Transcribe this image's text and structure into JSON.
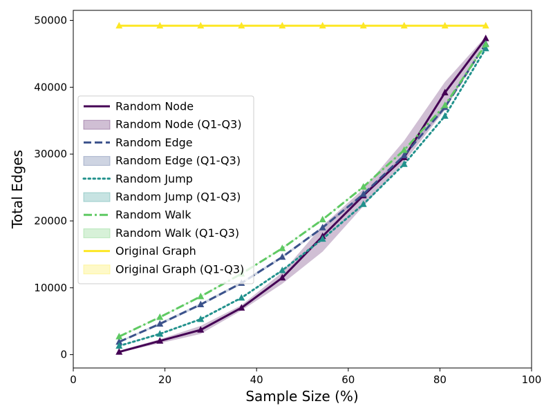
{
  "chart_data": {
    "type": "line",
    "title": "",
    "xlabel": "Sample Size (%)",
    "ylabel": "Total Edges",
    "xlim": [
      0,
      100
    ],
    "ylim": [
      -2000,
      51500
    ],
    "xticks": [
      0,
      20,
      40,
      60,
      80,
      100
    ],
    "yticks": [
      0,
      10000,
      20000,
      30000,
      40000,
      50000
    ],
    "grid": false,
    "legend_position": "center-left",
    "x": [
      10,
      18.9,
      27.8,
      36.7,
      45.6,
      54.4,
      63.3,
      72.2,
      81.1,
      90
    ],
    "series": [
      {
        "name": "Random Node",
        "band_name": "Random Node (Q1-Q3)",
        "color": "#440154",
        "style": "solid",
        "values": [
          400,
          2050,
          3700,
          7000,
          11500,
          17700,
          23800,
          29500,
          39200,
          47300
        ],
        "q1": [
          300,
          1700,
          3100,
          6600,
          10600,
          15400,
          22200,
          28800,
          36600,
          46900
        ],
        "q3": [
          600,
          2300,
          4300,
          7400,
          12300,
          19300,
          24800,
          32000,
          40800,
          47600
        ]
      },
      {
        "name": "Random Edge",
        "band_name": "Random Edge (Q1-Q3)",
        "color": "#3b528b",
        "style": "dashed",
        "values": [
          1900,
          4600,
          7500,
          10700,
          14600,
          19000,
          24000,
          29800,
          37000,
          46500
        ],
        "q1": [
          1800,
          4400,
          7300,
          10500,
          14400,
          18800,
          23800,
          29600,
          36800,
          46300
        ],
        "q3": [
          2000,
          4800,
          7700,
          10900,
          14800,
          19200,
          24200,
          30000,
          37200,
          46700
        ]
      },
      {
        "name": "Random Jump",
        "band_name": "Random Jump (Q1-Q3)",
        "color": "#21918c",
        "style": "dotted",
        "values": [
          1300,
          3100,
          5300,
          8500,
          12600,
          17300,
          22500,
          28500,
          35700,
          45800
        ],
        "q1": [
          1200,
          3000,
          5200,
          8400,
          12500,
          17200,
          22400,
          28400,
          35600,
          45700
        ],
        "q3": [
          1400,
          3200,
          5400,
          8600,
          12700,
          17400,
          22600,
          28600,
          35800,
          45900
        ]
      },
      {
        "name": "Random Walk",
        "band_name": "Random Walk (Q1-Q3)",
        "color": "#5ec962",
        "style": "dashdot",
        "values": [
          2700,
          5600,
          8700,
          12100,
          15900,
          20200,
          25100,
          30600,
          37300,
          46400
        ],
        "q1": [
          2600,
          5500,
          8600,
          12000,
          15800,
          20100,
          25000,
          30500,
          37200,
          46300
        ],
        "q3": [
          2800,
          5700,
          8800,
          12200,
          16000,
          20300,
          25200,
          30700,
          37400,
          46500
        ]
      },
      {
        "name": "Original Graph",
        "band_name": "Original Graph (Q1-Q3)",
        "color": "#fde725",
        "style": "solid",
        "values": [
          49200,
          49200,
          49200,
          49200,
          49200,
          49200,
          49200,
          49200,
          49200,
          49200
        ],
        "q1": [
          49200,
          49200,
          49200,
          49200,
          49200,
          49200,
          49200,
          49200,
          49200,
          49200
        ],
        "q3": [
          49200,
          49200,
          49200,
          49200,
          49200,
          49200,
          49200,
          49200,
          49200,
          49200
        ]
      }
    ]
  }
}
